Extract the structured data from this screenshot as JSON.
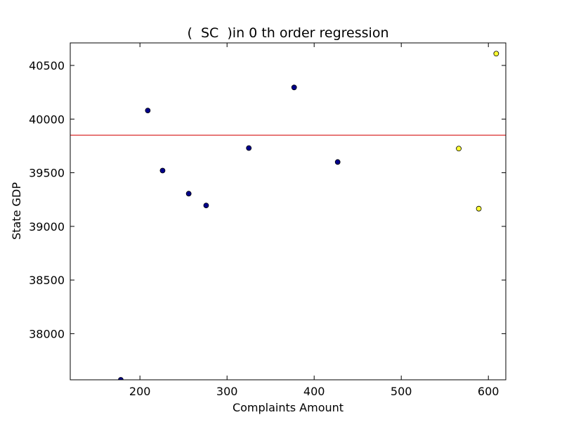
{
  "chart_data": {
    "type": "scatter",
    "title": "(  SC  )in 0 th order regression",
    "xlabel": "Complaints Amount",
    "ylabel": "State GDP",
    "xlim": [
      120,
      620
    ],
    "ylim": [
      37570,
      40710
    ],
    "xticks": [
      200,
      300,
      400,
      500,
      600
    ],
    "yticks": [
      38000,
      38500,
      39000,
      39500,
      40000,
      40500
    ],
    "grid": false,
    "series": [
      {
        "color": "#00008b",
        "points": [
          {
            "x": 178,
            "y": 37570
          },
          {
            "x": 209,
            "y": 40080
          },
          {
            "x": 226,
            "y": 39520
          },
          {
            "x": 256,
            "y": 39305
          },
          {
            "x": 276,
            "y": 39195
          },
          {
            "x": 325,
            "y": 39730
          },
          {
            "x": 377,
            "y": 40295
          },
          {
            "x": 427,
            "y": 39600
          }
        ]
      },
      {
        "color": "#ffff33",
        "points": [
          {
            "x": 566,
            "y": 39725
          },
          {
            "x": 589,
            "y": 39165
          },
          {
            "x": 609,
            "y": 40610
          }
        ]
      }
    ],
    "regression_line": {
      "y": 39850,
      "color": "#e05050"
    }
  }
}
